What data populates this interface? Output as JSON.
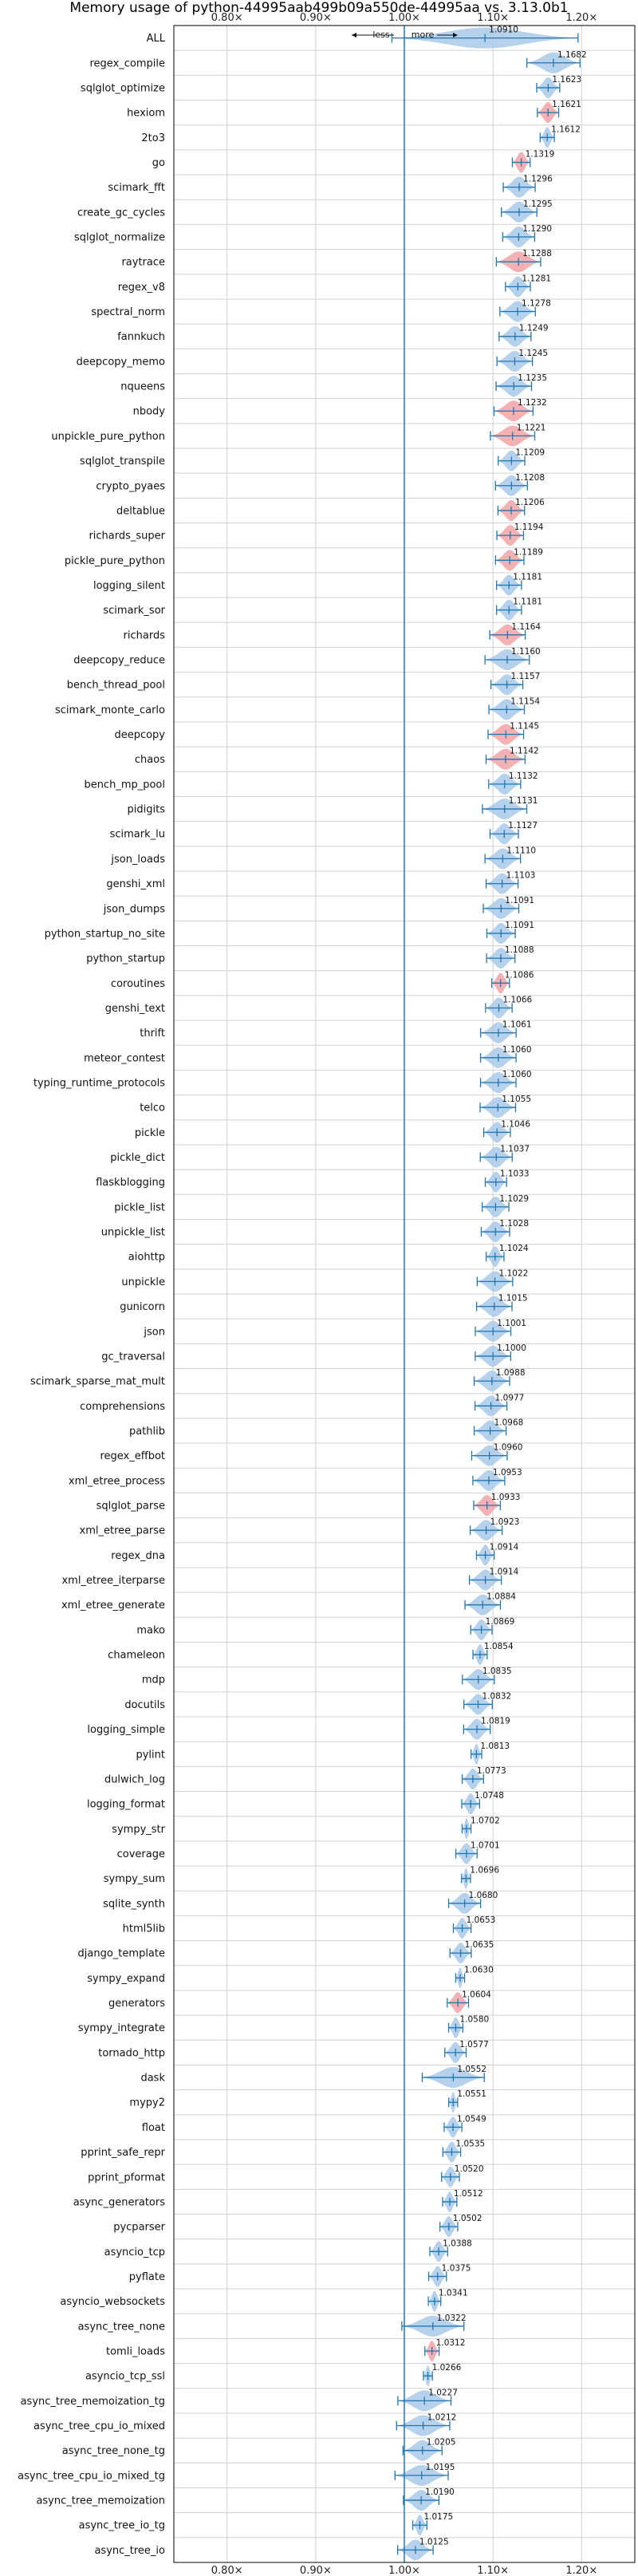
{
  "chart_data": {
    "type": "violin",
    "title": "Memory usage of python-44995aab499b09a550de-44995aa vs. 3.13.0b1",
    "direction_labels": {
      "less": "less",
      "more": "more"
    },
    "xlim": [
      0.74,
      1.26
    ],
    "xticks": [
      0.8,
      0.9,
      1.0,
      1.1,
      1.2
    ],
    "xtick_labels": [
      "0.80×",
      "0.90×",
      "1.00×",
      "1.10×",
      "1.20×"
    ],
    "reference_line": 1.0,
    "grid": true,
    "colors": {
      "blue": "#1f77b4",
      "blue_fill": "#a9c9e7",
      "red_fill": "#f2a3a6",
      "grid": "#d0d0d0"
    },
    "categories": [
      "ALL",
      "regex_compile",
      "sqlglot_optimize",
      "hexiom",
      "2to3",
      "go",
      "scimark_fft",
      "create_gc_cycles",
      "sqlglot_normalize",
      "raytrace",
      "regex_v8",
      "spectral_norm",
      "fannkuch",
      "deepcopy_memo",
      "nqueens",
      "nbody",
      "unpickle_pure_python",
      "sqlglot_transpile",
      "crypto_pyaes",
      "deltablue",
      "richards_super",
      "pickle_pure_python",
      "logging_silent",
      "scimark_sor",
      "richards",
      "deepcopy_reduce",
      "bench_thread_pool",
      "scimark_monte_carlo",
      "deepcopy",
      "chaos",
      "bench_mp_pool",
      "pidigits",
      "scimark_lu",
      "json_loads",
      "genshi_xml",
      "json_dumps",
      "python_startup_no_site",
      "python_startup",
      "coroutines",
      "genshi_text",
      "thrift",
      "meteor_contest",
      "typing_runtime_protocols",
      "telco",
      "pickle",
      "pickle_dict",
      "flaskblogging",
      "pickle_list",
      "unpickle_list",
      "aiohttp",
      "unpickle",
      "gunicorn",
      "json",
      "gc_traversal",
      "scimark_sparse_mat_mult",
      "comprehensions",
      "pathlib",
      "regex_effbot",
      "xml_etree_process",
      "sqlglot_parse",
      "xml_etree_parse",
      "regex_dna",
      "xml_etree_iterparse",
      "xml_etree_generate",
      "mako",
      "chameleon",
      "mdp",
      "docutils",
      "logging_simple",
      "pylint",
      "dulwich_log",
      "logging_format",
      "sympy_str",
      "coverage",
      "sympy_sum",
      "sqlite_synth",
      "html5lib",
      "django_template",
      "sympy_expand",
      "generators",
      "sympy_integrate",
      "tornado_http",
      "dask",
      "mypy2",
      "float",
      "pprint_safe_repr",
      "pprint_pformat",
      "async_generators",
      "pycparser",
      "asyncio_tcp",
      "pyflate",
      "asyncio_websockets",
      "async_tree_none",
      "tomli_loads",
      "asyncio_tcp_ssl",
      "async_tree_memoization_tg",
      "async_tree_cpu_io_mixed",
      "async_tree_none_tg",
      "async_tree_cpu_io_mixed_tg",
      "async_tree_memoization",
      "async_tree_io_tg",
      "async_tree_io"
    ],
    "values": [
      1.091,
      1.1682,
      1.1623,
      1.1621,
      1.1612,
      1.1319,
      1.1296,
      1.1295,
      1.129,
      1.1288,
      1.1281,
      1.1278,
      1.1249,
      1.1245,
      1.1235,
      1.1232,
      1.1221,
      1.1209,
      1.1208,
      1.1206,
      1.1194,
      1.1189,
      1.1181,
      1.1181,
      1.1164,
      1.116,
      1.1157,
      1.1154,
      1.1145,
      1.1142,
      1.1132,
      1.1131,
      1.1127,
      1.111,
      1.1103,
      1.1091,
      1.1091,
      1.1088,
      1.1086,
      1.1066,
      1.1061,
      1.106,
      1.106,
      1.1055,
      1.1046,
      1.1037,
      1.1033,
      1.1029,
      1.1028,
      1.1024,
      1.1022,
      1.1015,
      1.1001,
      1.1,
      1.0988,
      1.0977,
      1.0968,
      1.096,
      1.0953,
      1.0933,
      1.0923,
      1.0914,
      1.0914,
      1.0884,
      1.0869,
      1.0854,
      1.0835,
      1.0832,
      1.0819,
      1.0813,
      1.0773,
      1.0748,
      1.0702,
      1.0701,
      1.0696,
      1.068,
      1.0653,
      1.0635,
      1.063,
      1.0604,
      1.058,
      1.0577,
      1.0552,
      1.0551,
      1.0549,
      1.0535,
      1.052,
      1.0512,
      1.0502,
      1.0388,
      1.0375,
      1.0341,
      1.0322,
      1.0312,
      1.0266,
      1.0227,
      1.0212,
      1.0205,
      1.0195,
      1.019,
      1.0175,
      1.0125
    ],
    "value_labels": [
      "1.0910",
      "1.1682",
      "1.1623",
      "1.1621",
      "1.1612",
      "1.1319",
      "1.1296",
      "1.1295",
      "1.1290",
      "1.1288",
      "1.1281",
      "1.1278",
      "1.1249",
      "1.1245",
      "1.1235",
      "1.1232",
      "1.1221",
      "1.1209",
      "1.1208",
      "1.1206",
      "1.1194",
      "1.1189",
      "1.1181",
      "1.1181",
      "1.1164",
      "1.1160",
      "1.1157",
      "1.1154",
      "1.1145",
      "1.1142",
      "1.1132",
      "1.1131",
      "1.1127",
      "1.1110",
      "1.1103",
      "1.1091",
      "1.1091",
      "1.1088",
      "1.1086",
      "1.1066",
      "1.1061",
      "1.1060",
      "1.1060",
      "1.1055",
      "1.1046",
      "1.1037",
      "1.1033",
      "1.1029",
      "1.1028",
      "1.1024",
      "1.1022",
      "1.1015",
      "1.1001",
      "1.1000",
      "1.0988",
      "1.0977",
      "1.0968",
      "1.0960",
      "1.0953",
      "1.0933",
      "1.0923",
      "1.0914",
      "1.0914",
      "1.0884",
      "1.0869",
      "1.0854",
      "1.0835",
      "1.0832",
      "1.0819",
      "1.0813",
      "1.0773",
      "1.0748",
      "1.0702",
      "1.0701",
      "1.0696",
      "1.0680",
      "1.0653",
      "1.0635",
      "1.0630",
      "1.0604",
      "1.0580",
      "1.0577",
      "1.0552",
      "1.0551",
      "1.0549",
      "1.0535",
      "1.0520",
      "1.0512",
      "1.0502",
      "1.0388",
      "1.0375",
      "1.0341",
      "1.0322",
      "1.0312",
      "1.0266",
      "1.0227",
      "1.0212",
      "1.0205",
      "1.0195",
      "1.0190",
      "1.0175",
      "1.0125"
    ],
    "spreads": [
      0.105,
      0.03,
      0.013,
      0.012,
      0.008,
      0.01,
      0.018,
      0.02,
      0.018,
      0.025,
      0.014,
      0.02,
      0.018,
      0.02,
      0.02,
      0.022,
      0.025,
      0.015,
      0.018,
      0.015,
      0.015,
      0.016,
      0.014,
      0.014,
      0.02,
      0.025,
      0.018,
      0.02,
      0.02,
      0.022,
      0.018,
      0.025,
      0.016,
      0.02,
      0.018,
      0.02,
      0.016,
      0.016,
      0.01,
      0.015,
      0.02,
      0.02,
      0.02,
      0.02,
      0.015,
      0.018,
      0.012,
      0.015,
      0.016,
      0.01,
      0.02,
      0.02,
      0.02,
      0.02,
      0.02,
      0.018,
      0.018,
      0.02,
      0.018,
      0.015,
      0.018,
      0.01,
      0.018,
      0.02,
      0.012,
      0.008,
      0.018,
      0.016,
      0.015,
      0.006,
      0.012,
      0.01,
      0.005,
      0.012,
      0.005,
      0.018,
      0.01,
      0.012,
      0.005,
      0.012,
      0.008,
      0.012,
      0.035,
      0.005,
      0.01,
      0.01,
      0.01,
      0.008,
      0.01,
      0.01,
      0.01,
      0.007,
      0.035,
      0.008,
      0.005,
      0.03,
      0.03,
      0.022,
      0.03,
      0.02,
      0.008,
      0.02
    ],
    "highlight_red": [
      "hexiom",
      "go",
      "raytrace",
      "nbody",
      "unpickle_pure_python",
      "deltablue",
      "richards_super",
      "pickle_pure_python",
      "richards",
      "deepcopy",
      "chaos",
      "coroutines",
      "sqlglot_parse",
      "generators",
      "tomli_loads"
    ]
  }
}
